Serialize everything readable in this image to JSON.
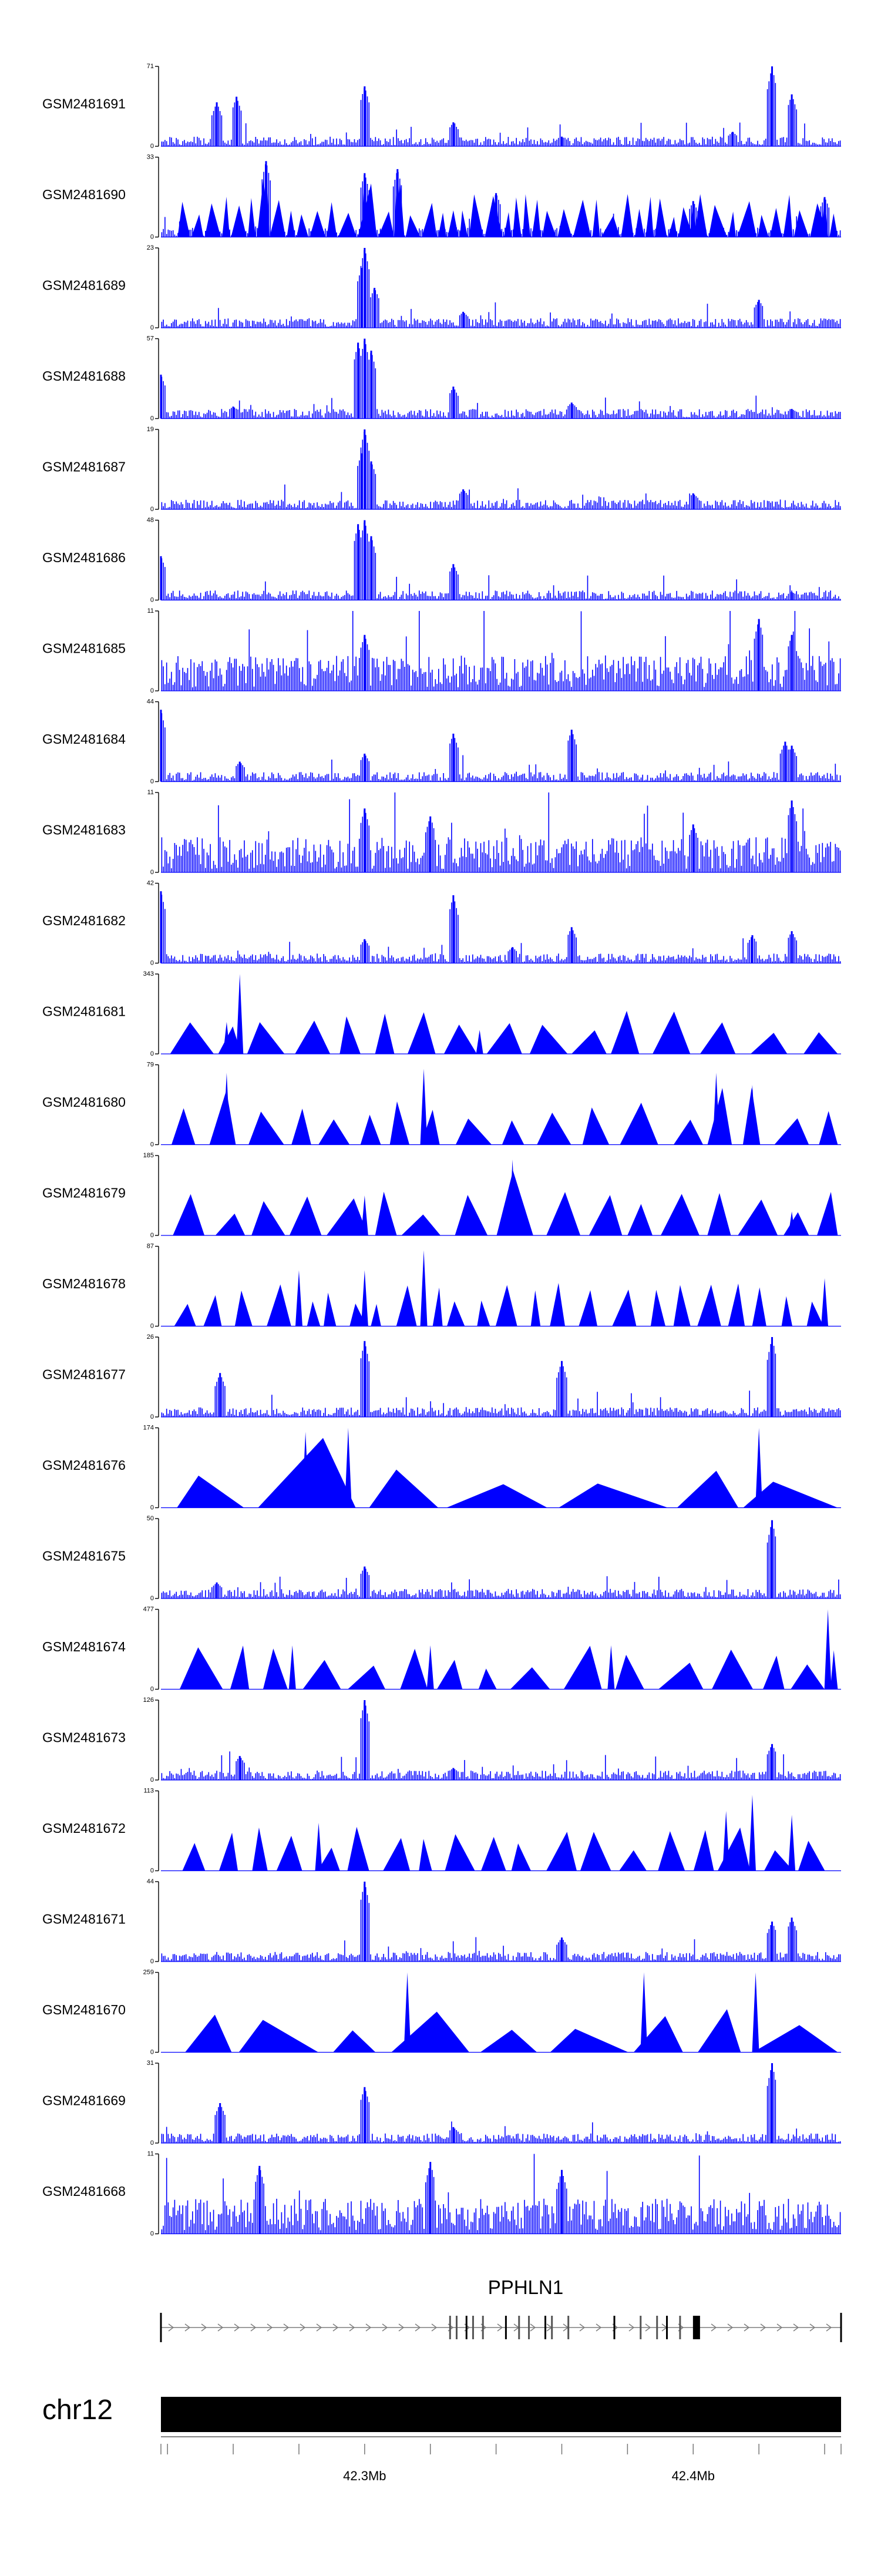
{
  "colors": {
    "signal": "#0000ff",
    "axis": "#000000",
    "ideogram": "#000000",
    "intron": "#7f7f7f"
  },
  "chart_data": {
    "type": "area",
    "title": "",
    "region": {
      "chromosome": "chr12",
      "start_mb": 42.238,
      "end_mb": 42.445
    },
    "legend": "none",
    "grid": false,
    "tracks": [
      {
        "name": "GSM2481691",
        "ymax": "71",
        "ymin": "0",
        "peaks": [
          [
            42.255,
            0.55
          ],
          [
            42.261,
            0.62
          ],
          [
            42.3,
            0.75
          ],
          [
            42.327,
            0.3
          ],
          [
            42.36,
            0.12
          ],
          [
            42.412,
            0.18
          ],
          [
            42.424,
            1.0
          ],
          [
            42.43,
            0.65
          ]
        ]
      },
      {
        "name": "GSM2481690",
        "ymax": "33",
        "ymin": "0",
        "peaks": [
          [
            42.27,
            0.95
          ],
          [
            42.3,
            0.8
          ],
          [
            42.31,
            0.85
          ],
          [
            42.34,
            0.55
          ],
          [
            42.4,
            0.45
          ],
          [
            42.44,
            0.5
          ]
        ]
      },
      {
        "name": "GSM2481689",
        "ymax": "23",
        "ymin": "0",
        "peaks": [
          [
            42.299,
            0.75
          ],
          [
            42.3,
            1.0
          ],
          [
            42.303,
            0.5
          ],
          [
            42.33,
            0.2
          ],
          [
            42.42,
            0.35
          ]
        ]
      },
      {
        "name": "GSM2481688",
        "ymax": "57",
        "ymin": "0",
        "peaks": [
          [
            42.238,
            0.55
          ],
          [
            42.26,
            0.15
          ],
          [
            42.298,
            0.95
          ],
          [
            42.3,
            1.0
          ],
          [
            42.302,
            0.85
          ],
          [
            42.327,
            0.4
          ],
          [
            42.363,
            0.2
          ],
          [
            42.43,
            0.12
          ]
        ]
      },
      {
        "name": "GSM2481687",
        "ymax": "19",
        "ymin": "0",
        "peaks": [
          [
            42.299,
            0.7
          ],
          [
            42.3,
            1.0
          ],
          [
            42.302,
            0.6
          ],
          [
            42.33,
            0.25
          ],
          [
            42.4,
            0.2
          ]
        ]
      },
      {
        "name": "GSM2481686",
        "ymax": "48",
        "ymin": "0",
        "peaks": [
          [
            42.238,
            0.55
          ],
          [
            42.298,
            0.95
          ],
          [
            42.3,
            1.0
          ],
          [
            42.302,
            0.8
          ],
          [
            42.327,
            0.45
          ],
          [
            42.43,
            0.1
          ]
        ]
      },
      {
        "name": "GSM2481685",
        "ymax": "11",
        "ymin": "0",
        "peaks": [
          [
            42.3,
            0.7
          ],
          [
            42.42,
            0.9
          ],
          [
            42.43,
            0.7
          ]
        ]
      },
      {
        "name": "GSM2481684",
        "ymax": "44",
        "ymin": "0",
        "peaks": [
          [
            42.238,
            0.9
          ],
          [
            42.262,
            0.25
          ],
          [
            42.3,
            0.35
          ],
          [
            42.327,
            0.6
          ],
          [
            42.363,
            0.65
          ],
          [
            42.428,
            0.5
          ],
          [
            42.43,
            0.45
          ]
        ]
      },
      {
        "name": "GSM2481683",
        "ymax": "11",
        "ymin": "0",
        "peaks": [
          [
            42.3,
            0.8
          ],
          [
            42.32,
            0.7
          ],
          [
            42.4,
            0.6
          ],
          [
            42.43,
            0.9
          ]
        ]
      },
      {
        "name": "GSM2481682",
        "ymax": "42",
        "ymin": "0",
        "peaks": [
          [
            42.238,
            0.9
          ],
          [
            42.3,
            0.3
          ],
          [
            42.327,
            0.85
          ],
          [
            42.345,
            0.2
          ],
          [
            42.363,
            0.45
          ],
          [
            42.418,
            0.35
          ],
          [
            42.43,
            0.4
          ]
        ]
      },
      {
        "name": "GSM2481681",
        "ymax": "343",
        "ymin": "0",
        "peaks": [
          [
            42.262,
            1.0
          ],
          [
            42.258,
            0.4
          ],
          [
            42.335,
            0.3
          ]
        ]
      },
      {
        "name": "GSM2481680",
        "ymax": "79",
        "ymin": "0",
        "peaks": [
          [
            42.258,
            0.9
          ],
          [
            42.318,
            0.95
          ],
          [
            42.407,
            0.9
          ],
          [
            42.418,
            0.75
          ]
        ]
      },
      {
        "name": "GSM2481679",
        "ymax": "185",
        "ymin": "0",
        "peaks": [
          [
            42.3,
            0.5
          ],
          [
            42.345,
            0.95
          ],
          [
            42.43,
            0.3
          ]
        ]
      },
      {
        "name": "GSM2481678",
        "ymax": "87",
        "ymin": "0",
        "peaks": [
          [
            42.28,
            0.7
          ],
          [
            42.3,
            0.7
          ],
          [
            42.318,
            0.95
          ],
          [
            42.44,
            0.6
          ]
        ]
      },
      {
        "name": "GSM2481677",
        "ymax": "26",
        "ymin": "0",
        "peaks": [
          [
            42.256,
            0.55
          ],
          [
            42.3,
            0.95
          ],
          [
            42.36,
            0.7
          ],
          [
            42.424,
            1.0
          ]
        ]
      },
      {
        "name": "GSM2481676",
        "ymax": "174",
        "ymin": "0",
        "peaks": [
          [
            42.282,
            0.95
          ],
          [
            42.295,
            1.0
          ],
          [
            42.42,
            1.0
          ]
        ]
      },
      {
        "name": "GSM2481675",
        "ymax": "50",
        "ymin": "0",
        "peaks": [
          [
            42.255,
            0.2
          ],
          [
            42.3,
            0.4
          ],
          [
            42.424,
            0.98
          ]
        ]
      },
      {
        "name": "GSM2481674",
        "ymax": "477",
        "ymin": "0",
        "peaks": [
          [
            42.278,
            0.55
          ],
          [
            42.32,
            0.55
          ],
          [
            42.375,
            0.55
          ],
          [
            42.441,
            1.0
          ]
        ]
      },
      {
        "name": "GSM2481673",
        "ymax": "126",
        "ymin": "0",
        "peaks": [
          [
            42.262,
            0.3
          ],
          [
            42.3,
            1.0
          ],
          [
            42.327,
            0.15
          ],
          [
            42.424,
            0.45
          ]
        ]
      },
      {
        "name": "GSM2481672",
        "ymax": "113",
        "ymin": "0",
        "peaks": [
          [
            42.286,
            0.6
          ],
          [
            42.41,
            0.75
          ],
          [
            42.418,
            0.95
          ],
          [
            42.43,
            0.7
          ]
        ]
      },
      {
        "name": "GSM2481671",
        "ymax": "44",
        "ymin": "0",
        "peaks": [
          [
            42.3,
            1.0
          ],
          [
            42.36,
            0.3
          ],
          [
            42.424,
            0.5
          ],
          [
            42.43,
            0.55
          ]
        ]
      },
      {
        "name": "GSM2481670",
        "ymax": "259",
        "ymin": "0",
        "peaks": [
          [
            42.313,
            1.0
          ],
          [
            42.385,
            1.0
          ],
          [
            42.419,
            1.0
          ]
        ]
      },
      {
        "name": "GSM2481669",
        "ymax": "31",
        "ymin": "0",
        "peaks": [
          [
            42.256,
            0.5
          ],
          [
            42.3,
            0.7
          ],
          [
            42.327,
            0.2
          ],
          [
            42.424,
            1.0
          ]
        ]
      },
      {
        "name": "GSM2481668",
        "ymax": "11",
        "ymin": "0",
        "peaks": [
          [
            42.268,
            0.85
          ],
          [
            42.32,
            0.9
          ],
          [
            42.36,
            0.8
          ]
        ]
      }
    ],
    "gene": {
      "name": "PPHLN1",
      "strand": "+",
      "start_mb": 42.238,
      "end_mb": 42.445,
      "exons_mb": [
        42.238,
        42.326,
        42.328,
        42.331,
        42.333,
        42.336,
        42.343,
        42.347,
        42.35,
        42.355,
        42.357,
        42.362,
        42.376,
        42.384,
        42.389,
        42.392,
        42.396,
        42.401,
        42.445
      ]
    },
    "chromosome": {
      "label": "chr12"
    },
    "axis": {
      "minor_ticks_mb": [
        42.24,
        42.26,
        42.28,
        42.3,
        42.32,
        42.34,
        42.36,
        42.38,
        42.4,
        42.42,
        42.44
      ],
      "labels": [
        {
          "at_mb": 42.3,
          "text": "42.3Mb"
        },
        {
          "at_mb": 42.4,
          "text": "42.4Mb"
        }
      ]
    }
  }
}
